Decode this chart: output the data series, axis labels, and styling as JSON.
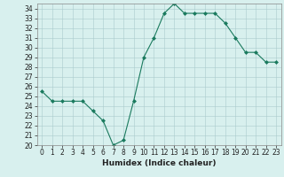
{
  "title": "",
  "xlabel": "Humidex (Indice chaleur)",
  "ylabel": "",
  "x": [
    0,
    1,
    2,
    3,
    4,
    5,
    6,
    7,
    8,
    9,
    10,
    11,
    12,
    13,
    14,
    15,
    16,
    17,
    18,
    19,
    20,
    21,
    22,
    23
  ],
  "y": [
    25.5,
    24.5,
    24.5,
    24.5,
    24.5,
    23.5,
    22.5,
    20.0,
    20.5,
    24.5,
    29.0,
    31.0,
    33.5,
    34.5,
    33.5,
    33.5,
    33.5,
    33.5,
    32.5,
    31.0,
    29.5,
    29.5,
    28.5,
    28.5
  ],
  "ylim": [
    20,
    34.5
  ],
  "yticks": [
    20,
    21,
    22,
    23,
    24,
    25,
    26,
    27,
    28,
    29,
    30,
    31,
    32,
    33,
    34
  ],
  "xlim": [
    -0.5,
    23.5
  ],
  "xticks": [
    0,
    1,
    2,
    3,
    4,
    5,
    6,
    7,
    8,
    9,
    10,
    11,
    12,
    13,
    14,
    15,
    16,
    17,
    18,
    19,
    20,
    21,
    22,
    23
  ],
  "line_color": "#1a7a5e",
  "marker": "D",
  "marker_size": 2.0,
  "bg_color": "#d8f0ee",
  "grid_color": "#aacccc",
  "fig_bg": "#d8f0ee",
  "tick_fontsize": 5.5,
  "xlabel_fontsize": 6.5
}
